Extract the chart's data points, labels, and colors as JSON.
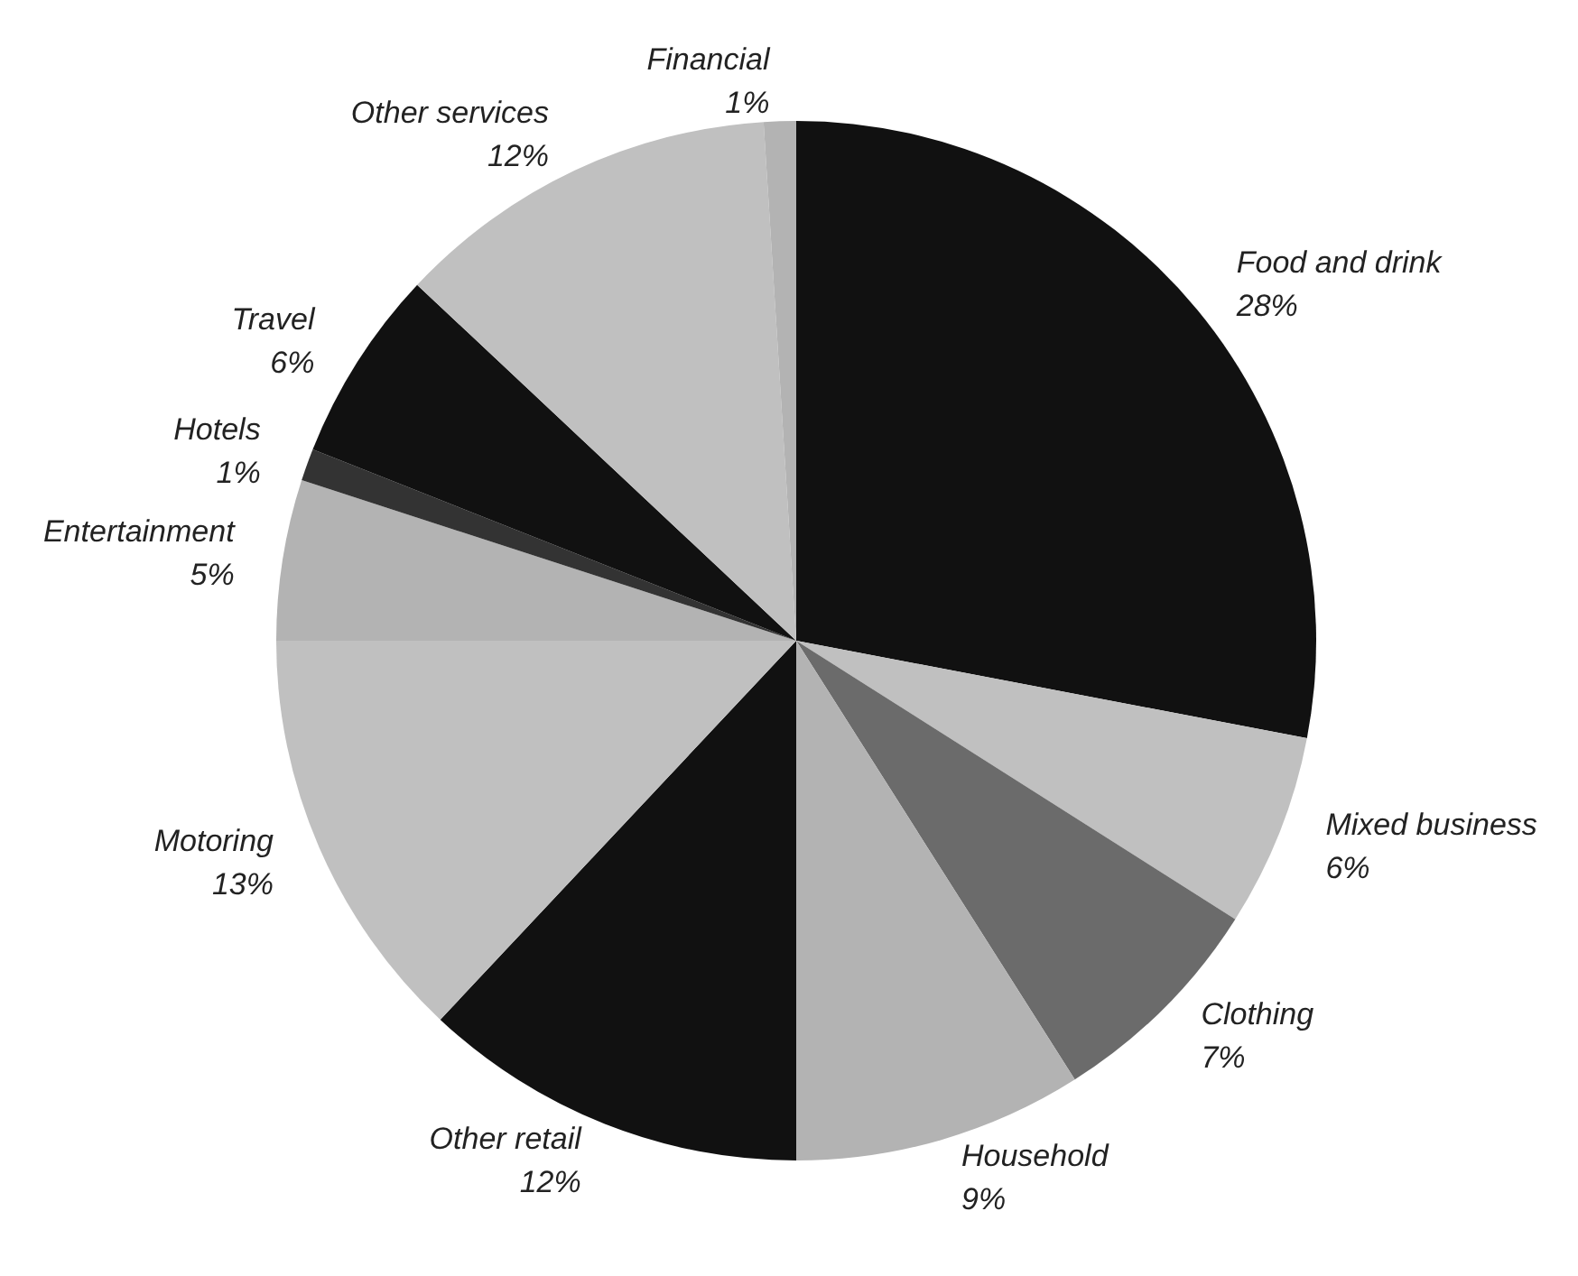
{
  "chart_data": {
    "type": "pie",
    "categories": [
      "Food and drink",
      "Mixed business",
      "Clothing",
      "Household",
      "Other retail",
      "Motoring",
      "Entertainment",
      "Hotels",
      "Travel",
      "Other services",
      "Financial"
    ],
    "values": [
      28,
      6,
      7,
      9,
      12,
      13,
      5,
      1,
      6,
      12,
      1
    ],
    "value_labels": [
      "28%",
      "6%",
      "7%",
      "9%",
      "12%",
      "13%",
      "5%",
      "1%",
      "6%",
      "12%",
      "1%"
    ],
    "colors": [
      "#111111",
      "#c0c0c0",
      "#6b6b6b",
      "#b3b3b3",
      "#111111",
      "#c0c0c0",
      "#b3b3b3",
      "#333333",
      "#111111",
      "#c0c0c0",
      "#b3b3b3"
    ],
    "legend": false
  }
}
